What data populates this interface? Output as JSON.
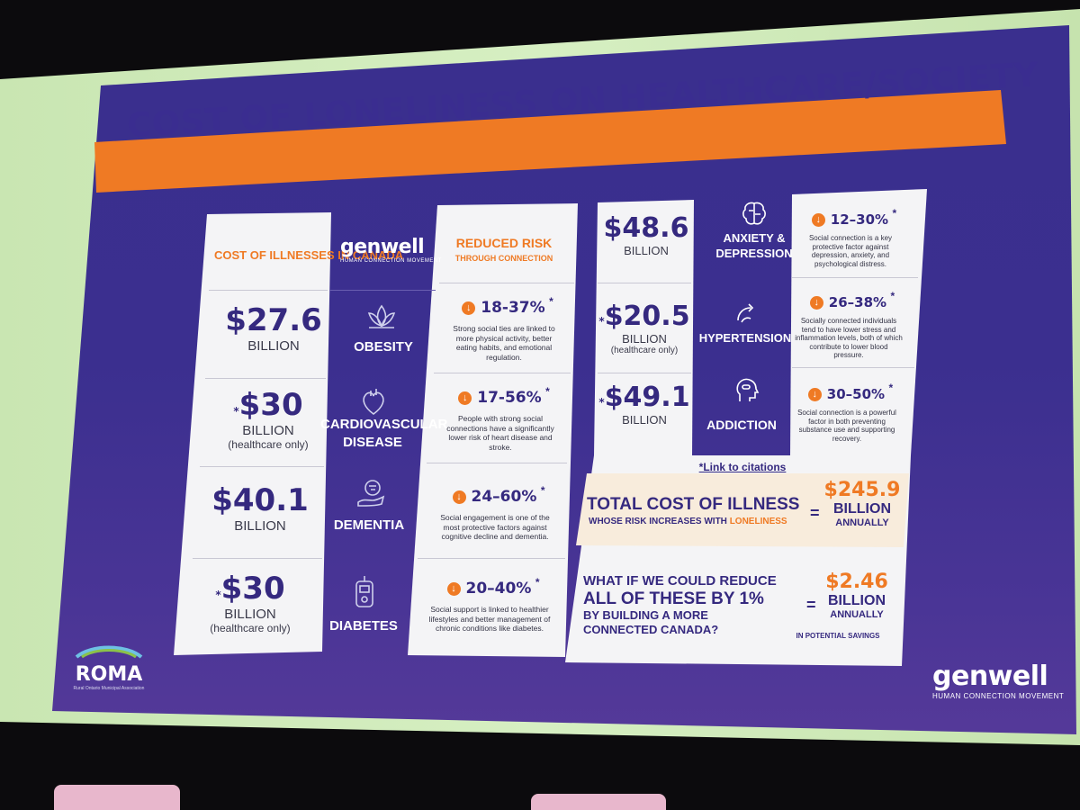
{
  "slide": {
    "title": "COST OF LONELINESS ON HEALTHCARE/SOCIETY",
    "colors": {
      "slide_bg": "#3b2f8f",
      "banner": "#ef7a24",
      "frame": "#cfe9b9",
      "title_text": "#3a2d90"
    }
  },
  "left_table": {
    "header_cost": "COST OF ILLNESSES IN CANADA",
    "brand": {
      "name": "genwell",
      "tagline": "HUMAN CONNECTION MOVEMENT"
    },
    "header_risk_line1": "REDUCED RISK",
    "header_risk_line2": "THROUGH CONNECTION",
    "rows": [
      {
        "amount": "$27.6",
        "unit": "BILLION",
        "note": "",
        "star": "",
        "condition": "OBESITY",
        "icon": "lotus-icon",
        "range": "18-37%",
        "range_star": "*",
        "desc": "Strong social ties are linked to more physical activity, better eating habits, and emotional regulation."
      },
      {
        "amount": "$30",
        "unit": "BILLION",
        "note": "(healthcare only)",
        "star": "*",
        "condition": "CARDIOVASCULAR DISEASE",
        "icon": "heart-icon",
        "range": "17-56%",
        "range_star": "*",
        "desc": "People with strong social connections have a significantly lower risk of heart disease and stroke."
      },
      {
        "amount": "$40.1",
        "unit": "BILLION",
        "note": "",
        "star": "",
        "condition": "DEMENTIA",
        "icon": "brain-hand-icon",
        "range": "24–60%",
        "range_star": "*",
        "desc": "Social engagement is one of the most protective factors against cognitive decline and dementia."
      },
      {
        "amount": "$30",
        "unit": "BILLION",
        "note": "(healthcare only)",
        "star": "*",
        "condition": "DIABETES",
        "icon": "glucose-meter-icon",
        "range": "20–40%",
        "range_star": "*",
        "desc": "Social support is linked to healthier lifestyles and better management of chronic conditions like diabetes."
      }
    ]
  },
  "right_table": {
    "rows": [
      {
        "amount": "$48.6",
        "unit": "BILLION",
        "note": "",
        "star": "",
        "condition": "ANXIETY & DEPRESSION",
        "icon": "brain-icon",
        "range": "12–30%",
        "range_star": "*",
        "desc": "Social connection is a key protective factor against depression, anxiety, and psychological distress."
      },
      {
        "amount": "$20.5",
        "unit": "BILLION",
        "note": "(healthcare only)",
        "star": "*",
        "condition": "HYPERTENSION",
        "icon": "pressure-icon",
        "range": "26–38%",
        "range_star": "*",
        "desc": "Socially connected individuals tend to have lower stress and inflammation levels, both of which contribute to lower blood pressure."
      },
      {
        "amount": "$49.1",
        "unit": "BILLION",
        "note": "",
        "star": "*",
        "condition": "ADDICTION",
        "icon": "pill-head-icon",
        "range": "30–50%",
        "range_star": "*",
        "desc": "Social connection is a powerful factor in both preventing substance use and supporting recovery."
      }
    ],
    "citation_link": "*Link to citations"
  },
  "total": {
    "line1": "TOTAL COST OF ILLNESS",
    "line2_prefix": "WHOSE RISK INCREASES WITH",
    "line2_highlight": "LONELINESS",
    "equals": "=",
    "amount": "$245.9",
    "unit": "BILLION",
    "period": "ANNUALLY"
  },
  "reduce": {
    "line1": "WHAT IF WE COULD REDUCE",
    "line2": "ALL OF THESE BY 1%",
    "line3": "BY BUILDING A MORE",
    "line4": "CONNECTED CANADA?",
    "equals": "=",
    "amount": "$2.46",
    "unit": "BILLION",
    "period": "ANNUALLY",
    "note": "IN POTENTIAL SAVINGS"
  },
  "footer": {
    "roma": "ROMA",
    "roma_sub": "Rural Ontario Municipal Association",
    "brand": "genwell",
    "brand_sub": "HUMAN CONNECTION MOVEMENT"
  }
}
